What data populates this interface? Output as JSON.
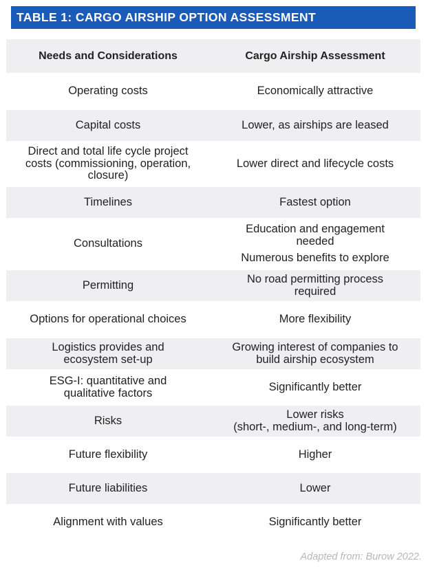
{
  "title": "TABLE 1: CARGO AIRSHIP OPTION ASSESSMENT",
  "colors": {
    "title_bar": "#1a5bb8",
    "row_shade": "#efeff1",
    "source_text": "#b7b7b7"
  },
  "table": {
    "headers": [
      "Needs and Considerations",
      "Cargo Airship Assessment"
    ],
    "rows": [
      {
        "need": [
          "Operating costs"
        ],
        "assessment": [
          "Economically attractive"
        ]
      },
      {
        "need": [
          "Capital costs"
        ],
        "assessment": [
          "Lower, as airships are leased"
        ]
      },
      {
        "need": [
          "Direct and total life cycle project",
          "costs (commissioning, operation,",
          "closure)"
        ],
        "assessment": [
          "Lower direct and lifecycle costs"
        ]
      },
      {
        "need": [
          "Timelines"
        ],
        "assessment": [
          "Fastest option"
        ]
      },
      {
        "need": [
          "Consultations"
        ],
        "assessment": [
          "Education and engagement",
          "needed",
          "Numerous benefits to explore"
        ]
      },
      {
        "need": [
          "Permitting"
        ],
        "assessment": [
          "No road permitting process",
          "required"
        ]
      },
      {
        "need": [
          "Options for operational choices"
        ],
        "assessment": [
          "More flexibility"
        ]
      },
      {
        "need": [
          "Logistics provides and",
          "ecosystem set-up"
        ],
        "assessment": [
          "Growing interest of companies to",
          "build airship ecosystem"
        ]
      },
      {
        "need": [
          "ESG-I: quantitative and",
          "qualitative factors"
        ],
        "assessment": [
          "Significantly better"
        ]
      },
      {
        "need": [
          "Risks"
        ],
        "assessment": [
          "Lower risks",
          "(short-, medium-, and long-term)"
        ]
      },
      {
        "need": [
          "Future flexibility"
        ],
        "assessment": [
          "Higher"
        ]
      },
      {
        "need": [
          "Future liabilities"
        ],
        "assessment": [
          "Lower"
        ]
      },
      {
        "need": [
          "Alignment with values"
        ],
        "assessment": [
          "Significantly better"
        ]
      }
    ]
  },
  "source": "Adapted from: Burow 2022."
}
